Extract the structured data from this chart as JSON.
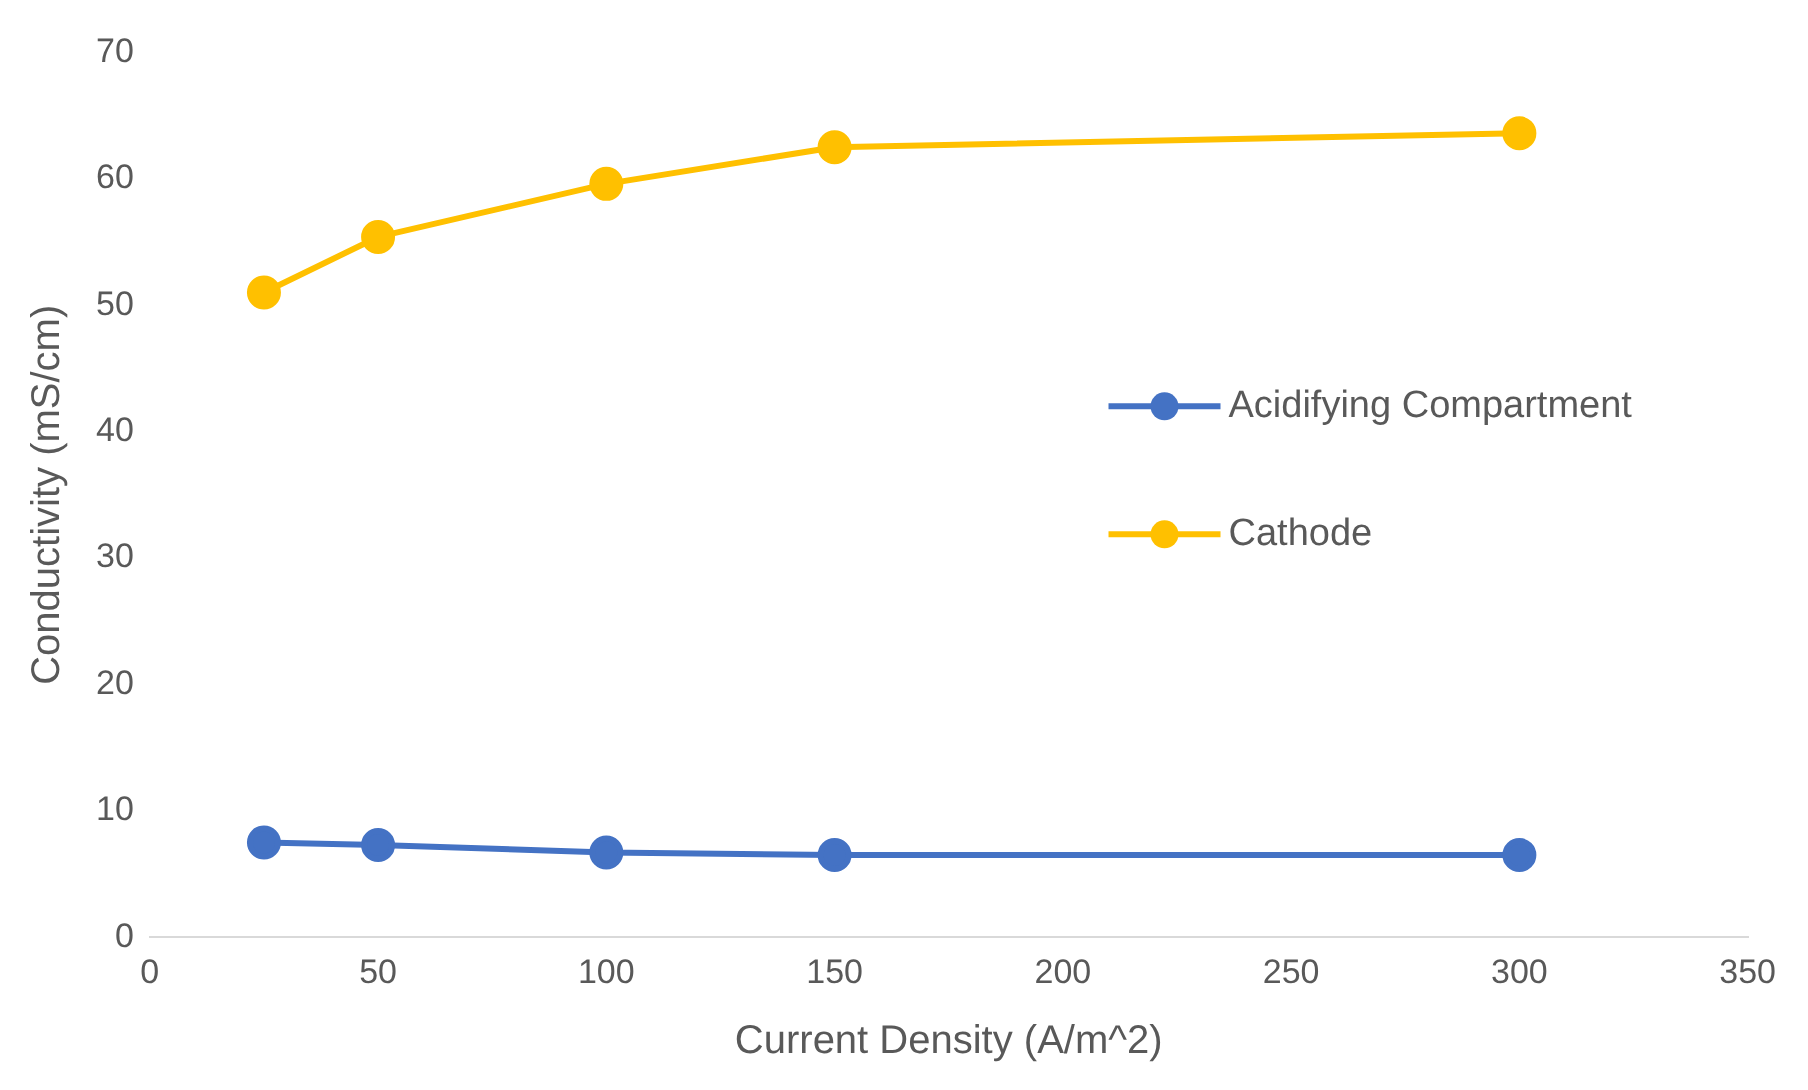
{
  "chart_data": {
    "type": "line",
    "xlabel": "Current Density (A/m^2)",
    "ylabel": "Conductivity (mS/cm)",
    "x": [
      25,
      50,
      100,
      150,
      300
    ],
    "series": [
      {
        "name": "Acidifying Compartment",
        "color": "#4472c4",
        "values": [
          7.5,
          7.3,
          6.7,
          6.5,
          6.5
        ]
      },
      {
        "name": "Cathode",
        "color": "#ffc000",
        "values": [
          51.0,
          55.4,
          59.6,
          62.5,
          63.6
        ]
      }
    ],
    "xlim": [
      0,
      350
    ],
    "xticks": [
      0,
      50,
      100,
      150,
      200,
      250,
      300,
      350
    ],
    "ylim": [
      0,
      70
    ],
    "yticks": [
      0,
      10,
      20,
      30,
      40,
      50,
      60,
      70
    ],
    "grid": false,
    "legend": "right",
    "marker": "circle",
    "line_style": "solid"
  }
}
